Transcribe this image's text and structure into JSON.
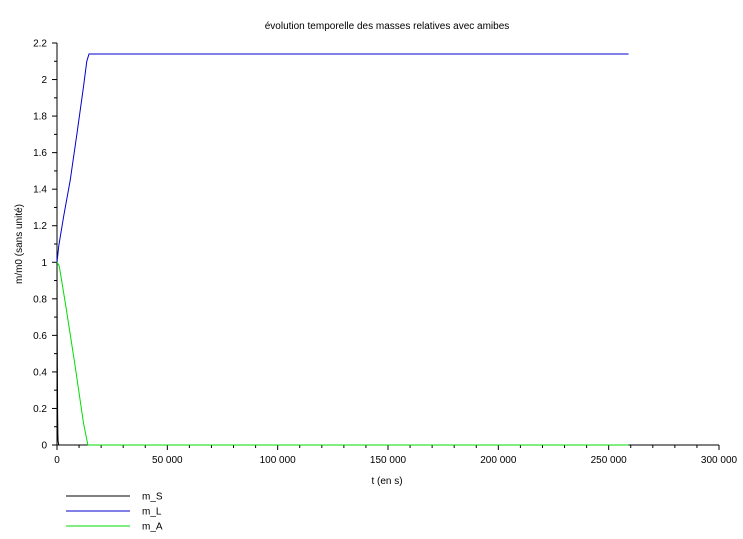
{
  "chart_data": {
    "type": "line",
    "title": "évolution temporelle des masses relatives avec amibes",
    "xlabel": "t (en s)",
    "ylabel": "m/m0 (sans unité)",
    "xlim": [
      0,
      300000
    ],
    "ylim": [
      0,
      2.2
    ],
    "x_ticks": [
      0,
      50000,
      100000,
      150000,
      200000,
      250000,
      300000
    ],
    "x_tick_labels": [
      "0",
      "50 000",
      "100 000",
      "150 000",
      "200 000",
      "250 000",
      "300 000"
    ],
    "y_ticks": [
      0,
      0.2,
      0.4,
      0.6,
      0.8,
      1,
      1.2,
      1.4,
      1.6,
      1.8,
      2,
      2.2
    ],
    "y_tick_labels": [
      "0",
      "0.2",
      "0.4",
      "0.6",
      "0.8",
      "1",
      "1.2",
      "1.4",
      "1.6",
      "1.8",
      "2",
      "2.2"
    ],
    "grid": false,
    "legend_position": "bottom-left",
    "series": [
      {
        "name": "m_S",
        "color": "#000000",
        "x": [
          0,
          100,
          200,
          300,
          400,
          500,
          800,
          1200
        ],
        "y": [
          1.0,
          0.6,
          0.34,
          0.15,
          0.06,
          0.02,
          0.0,
          0.0
        ]
      },
      {
        "name": "m_L",
        "color": "#0000cc",
        "x": [
          0,
          800,
          3000,
          6000,
          9000,
          12000,
          13500,
          14500,
          259000
        ],
        "y": [
          1.0,
          1.09,
          1.25,
          1.45,
          1.7,
          1.96,
          2.1,
          2.14,
          2.14
        ]
      },
      {
        "name": "m_A",
        "color": "#00dd00",
        "x": [
          0,
          1000,
          4000,
          8000,
          12000,
          14000,
          259000
        ],
        "y": [
          1.0,
          0.98,
          0.76,
          0.45,
          0.12,
          0.0,
          0.0
        ]
      }
    ]
  }
}
